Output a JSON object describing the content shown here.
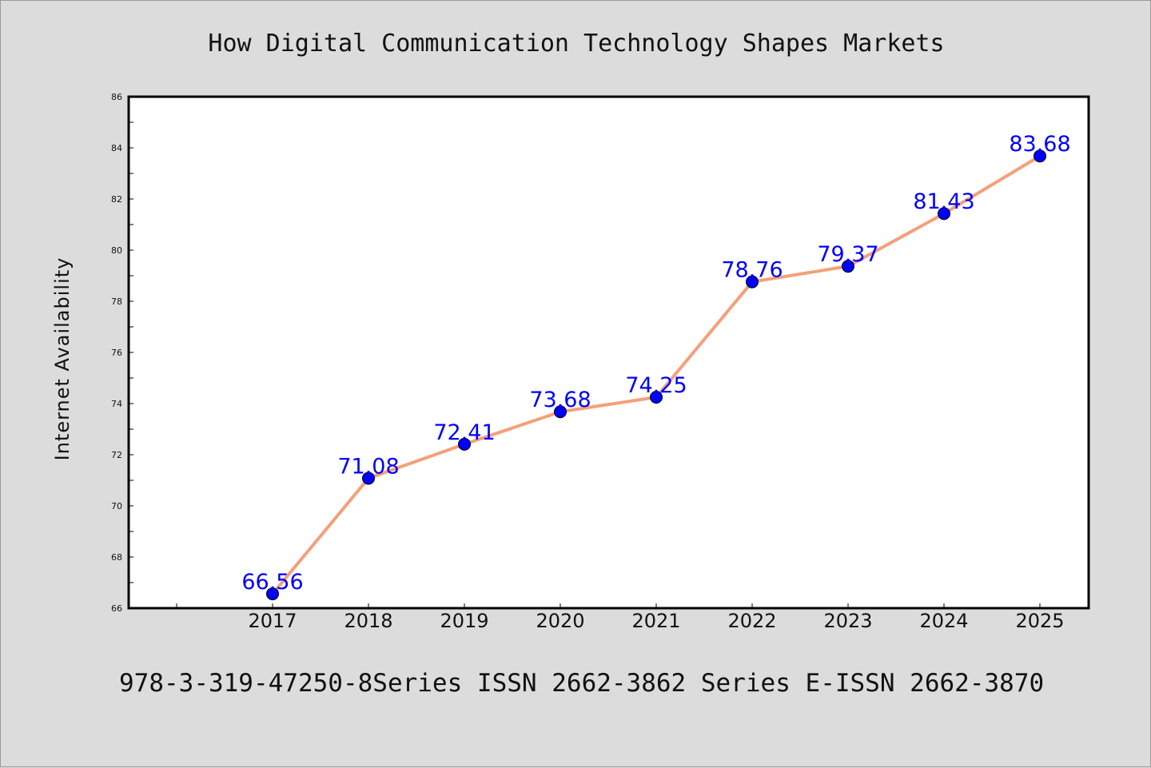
{
  "chart_data": {
    "type": "line",
    "title": "How Digital Communication Technology Shapes Markets",
    "xlabel": "",
    "ylabel": "Internet Availability",
    "x": [
      "2017",
      "2018",
      "2019",
      "2020",
      "2021",
      "2022",
      "2023",
      "2024",
      "2025"
    ],
    "y_tick_labels": [
      "66",
      "68",
      "70",
      "72",
      "74",
      "76",
      "78",
      "80",
      "82",
      "84",
      "86"
    ],
    "series": [
      {
        "values": [
          66.56,
          71.08,
          72.41,
          73.68,
          74.25,
          78.76,
          79.37,
          81.43,
          83.68
        ],
        "data_labels": [
          "66.56",
          "71.08",
          "72.41",
          "73.68",
          "74.25",
          "78.76",
          "79.37",
          "81.43",
          "83.68"
        ],
        "line_color": "#f4a07a",
        "marker_color": "#0000ff",
        "label_color": "#0000ff"
      }
    ],
    "ylim": [
      66,
      86
    ],
    "grid": false,
    "legend": "none",
    "footer": "978-3-319-47250-8Series ISSN 2662-3862 Series E-ISSN 2662-3870"
  },
  "colors": {
    "background": "#dcdcdc",
    "plot_area": "#ffffff",
    "axis": "#000000"
  }
}
